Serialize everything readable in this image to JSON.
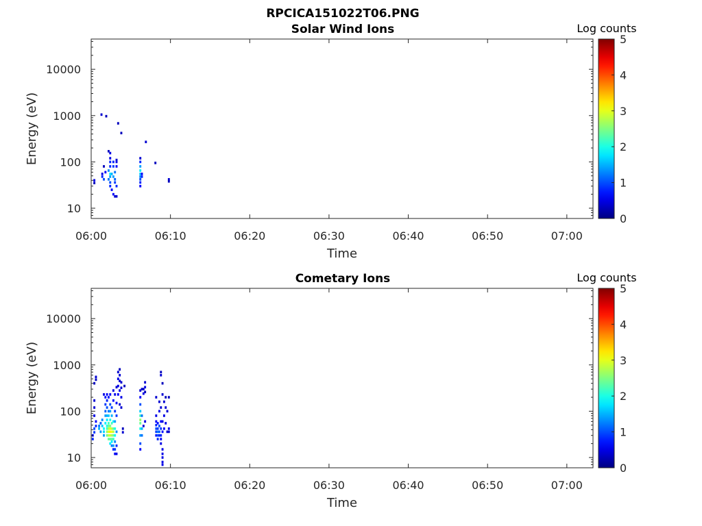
{
  "figure": {
    "title": "RPCICA151022T06.PNG"
  },
  "chart_data": [
    {
      "type": "heatmap",
      "title": "Solar Wind Ions",
      "xlabel": "Time",
      "ylabel": "Energy (eV)",
      "x_ticks": [
        "06:00",
        "06:10",
        "06:20",
        "06:30",
        "06:40",
        "06:50",
        "07:00"
      ],
      "x_tick_minutes": [
        0,
        10,
        20,
        30,
        40,
        50,
        60
      ],
      "xlim_minutes": [
        0,
        63.3
      ],
      "y_scale": "log",
      "y_ticks": [
        "10",
        "100",
        "1000",
        "10000"
      ],
      "y_tick_values": [
        10,
        100,
        1000,
        10000
      ],
      "ylim": [
        6,
        45000
      ],
      "colorbar": {
        "label": "Log counts",
        "range": [
          0,
          5
        ],
        "ticks": [
          "0",
          "1",
          "2",
          "3",
          "4",
          "5"
        ],
        "colormap": "jet"
      },
      "cells": [
        [
          0.4,
          35,
          0.3
        ],
        [
          0.4,
          40,
          0.5
        ],
        [
          1.3,
          1050,
          0.4
        ],
        [
          1.9,
          970,
          0.3
        ],
        [
          3.4,
          680,
          0.3
        ],
        [
          3.8,
          420,
          0.3
        ],
        [
          1.4,
          55,
          0.5
        ],
        [
          1.4,
          48,
          0.8
        ],
        [
          1.6,
          42,
          1.0
        ],
        [
          1.8,
          60,
          0.6
        ],
        [
          1.6,
          80,
          0.3
        ],
        [
          2.2,
          170,
          0.3
        ],
        [
          2.4,
          155,
          0.5
        ],
        [
          2.4,
          120,
          0.5
        ],
        [
          2.4,
          100,
          0.8
        ],
        [
          2.4,
          80,
          0.8
        ],
        [
          2.2,
          65,
          1.3
        ],
        [
          2.4,
          55,
          1.8
        ],
        [
          2.4,
          48,
          1.4
        ],
        [
          2.2,
          42,
          1.2
        ],
        [
          2.4,
          36,
          1.0
        ],
        [
          2.4,
          30,
          0.8
        ],
        [
          2.6,
          25,
          0.6
        ],
        [
          2.8,
          20,
          0.6
        ],
        [
          2.6,
          55,
          1.5
        ],
        [
          2.8,
          48,
          1.4
        ],
        [
          3.0,
          60,
          1.2
        ],
        [
          3.0,
          42,
          1.1
        ],
        [
          3.0,
          36,
          0.9
        ],
        [
          3.2,
          30,
          0.8
        ],
        [
          3.2,
          80,
          0.6
        ],
        [
          3.2,
          100,
          0.5
        ],
        [
          3.2,
          110,
          0.4
        ],
        [
          2.8,
          100,
          0.8
        ],
        [
          2.8,
          80,
          0.9
        ],
        [
          3.0,
          18,
          0.4
        ],
        [
          3.2,
          18,
          0.4
        ],
        [
          6.2,
          120,
          0.4
        ],
        [
          6.2,
          100,
          0.8
        ],
        [
          6.2,
          80,
          1.4
        ],
        [
          6.2,
          65,
          1.8
        ],
        [
          6.2,
          55,
          1.6
        ],
        [
          6.2,
          48,
          1.3
        ],
        [
          6.2,
          42,
          1.0
        ],
        [
          6.2,
          36,
          0.8
        ],
        [
          6.2,
          30,
          0.6
        ],
        [
          6.4,
          48,
          0.8
        ],
        [
          6.4,
          55,
          0.6
        ],
        [
          6.9,
          270,
          0.4
        ],
        [
          8.1,
          95,
          0.3
        ],
        [
          9.8,
          42,
          0.4
        ],
        [
          9.8,
          38,
          0.3
        ]
      ]
    },
    {
      "type": "heatmap",
      "title": "Cometary Ions",
      "xlabel": "Time",
      "ylabel": "Energy (eV)",
      "x_ticks": [
        "06:00",
        "06:10",
        "06:20",
        "06:30",
        "06:40",
        "06:50",
        "07:00"
      ],
      "x_tick_minutes": [
        0,
        10,
        20,
        30,
        40,
        50,
        60
      ],
      "xlim_minutes": [
        0,
        63.3
      ],
      "y_scale": "log",
      "y_ticks": [
        "10",
        "100",
        "1000",
        "10000"
      ],
      "y_tick_values": [
        10,
        100,
        1000,
        10000
      ],
      "ylim": [
        6,
        45000
      ],
      "colorbar": {
        "label": "Log counts",
        "range": [
          0,
          5
        ],
        "ticks": [
          "0",
          "1",
          "2",
          "3",
          "4",
          "5"
        ],
        "colormap": "jet"
      },
      "cells": [
        [
          0.2,
          30,
          0.6
        ],
        [
          0.2,
          25,
          0.8
        ],
        [
          0.4,
          35,
          0.9
        ],
        [
          0.4,
          42,
          1.0
        ],
        [
          0.6,
          48,
          0.8
        ],
        [
          0.6,
          60,
          0.6
        ],
        [
          0.4,
          80,
          0.5
        ],
        [
          0.4,
          120,
          0.4
        ],
        [
          0.4,
          170,
          0.4
        ],
        [
          0.6,
          550,
          0.4
        ],
        [
          0.6,
          480,
          0.3
        ],
        [
          0.4,
          400,
          0.3
        ],
        [
          1.0,
          48,
          1.2
        ],
        [
          1.0,
          42,
          1.5
        ],
        [
          1.2,
          36,
          1.4
        ],
        [
          1.2,
          55,
          1.1
        ],
        [
          1.4,
          65,
          1.3
        ],
        [
          1.4,
          48,
          1.6
        ],
        [
          1.6,
          42,
          1.9
        ],
        [
          1.6,
          36,
          1.7
        ],
        [
          1.6,
          30,
          1.4
        ],
        [
          1.8,
          55,
          1.8
        ],
        [
          1.8,
          80,
          1.4
        ],
        [
          1.8,
          100,
          1.1
        ],
        [
          1.8,
          140,
          0.9
        ],
        [
          1.8,
          200,
          0.7
        ],
        [
          1.6,
          230,
          0.5
        ],
        [
          2.0,
          30,
          2.4
        ],
        [
          2.0,
          36,
          2.6
        ],
        [
          2.0,
          42,
          2.2
        ],
        [
          2.0,
          48,
          2.0
        ],
        [
          2.0,
          65,
          1.8
        ],
        [
          2.0,
          80,
          1.5
        ],
        [
          2.0,
          120,
          1.0
        ],
        [
          2.0,
          170,
          0.8
        ],
        [
          2.0,
          230,
          0.6
        ],
        [
          2.2,
          25,
          2.4
        ],
        [
          2.2,
          30,
          2.8
        ],
        [
          2.2,
          36,
          3.0
        ],
        [
          2.2,
          42,
          2.7
        ],
        [
          2.2,
          48,
          2.4
        ],
        [
          2.2,
          55,
          2.2
        ],
        [
          2.2,
          80,
          1.6
        ],
        [
          2.2,
          100,
          1.2
        ],
        [
          2.2,
          200,
          0.7
        ],
        [
          2.4,
          20,
          1.8
        ],
        [
          2.4,
          25,
          2.3
        ],
        [
          2.4,
          30,
          2.9
        ],
        [
          2.4,
          36,
          3.2
        ],
        [
          2.4,
          42,
          3.0
        ],
        [
          2.4,
          48,
          2.5
        ],
        [
          2.4,
          65,
          2.0
        ],
        [
          2.4,
          100,
          1.4
        ],
        [
          2.4,
          140,
          1.0
        ],
        [
          2.4,
          230,
          0.6
        ],
        [
          2.6,
          18,
          1.2
        ],
        [
          2.6,
          22,
          1.8
        ],
        [
          2.6,
          25,
          2.4
        ],
        [
          2.6,
          30,
          2.7
        ],
        [
          2.6,
          36,
          3.1
        ],
        [
          2.6,
          42,
          2.8
        ],
        [
          2.6,
          55,
          2.2
        ],
        [
          2.6,
          80,
          1.5
        ],
        [
          2.6,
          120,
          0.9
        ],
        [
          2.8,
          15,
          0.8
        ],
        [
          2.8,
          18,
          1.4
        ],
        [
          2.8,
          25,
          2.2
        ],
        [
          2.8,
          30,
          2.5
        ],
        [
          2.8,
          36,
          2.8
        ],
        [
          2.8,
          42,
          2.4
        ],
        [
          2.8,
          60,
          1.8
        ],
        [
          2.8,
          170,
          0.7
        ],
        [
          2.8,
          280,
          0.5
        ],
        [
          3.0,
          12,
          0.6
        ],
        [
          3.0,
          15,
          0.9
        ],
        [
          3.0,
          22,
          1.3
        ],
        [
          3.0,
          30,
          1.9
        ],
        [
          3.0,
          42,
          2.0
        ],
        [
          3.0,
          60,
          1.4
        ],
        [
          3.0,
          100,
          0.9
        ],
        [
          3.0,
          230,
          0.5
        ],
        [
          3.2,
          12,
          0.5
        ],
        [
          3.2,
          18,
          0.8
        ],
        [
          3.2,
          36,
          1.3
        ],
        [
          3.2,
          80,
          0.9
        ],
        [
          3.2,
          150,
          0.6
        ],
        [
          3.2,
          330,
          0.4
        ],
        [
          3.4,
          700,
          0.4
        ],
        [
          3.4,
          500,
          0.5
        ],
        [
          3.4,
          350,
          0.5
        ],
        [
          3.4,
          230,
          0.6
        ],
        [
          3.6,
          800,
          0.3
        ],
        [
          3.6,
          600,
          0.4
        ],
        [
          3.6,
          450,
          0.4
        ],
        [
          3.6,
          280,
          0.5
        ],
        [
          3.8,
          420,
          0.4
        ],
        [
          3.8,
          320,
          0.4
        ],
        [
          3.8,
          200,
          0.5
        ],
        [
          3.8,
          120,
          0.4
        ],
        [
          3.6,
          140,
          0.4
        ],
        [
          4.0,
          35,
          0.4
        ],
        [
          4.0,
          42,
          0.3
        ],
        [
          4.2,
          350,
          0.3
        ],
        [
          6.2,
          15,
          0.6
        ],
        [
          6.2,
          20,
          1.0
        ],
        [
          6.2,
          30,
          1.4
        ],
        [
          6.2,
          42,
          2.0
        ],
        [
          6.2,
          55,
          2.4
        ],
        [
          6.2,
          65,
          2.6
        ],
        [
          6.2,
          80,
          2.2
        ],
        [
          6.2,
          100,
          1.6
        ],
        [
          6.2,
          140,
          1.0
        ],
        [
          6.2,
          200,
          0.6
        ],
        [
          6.2,
          280,
          0.4
        ],
        [
          6.4,
          30,
          1.2
        ],
        [
          6.4,
          42,
          1.5
        ],
        [
          6.4,
          80,
          1.2
        ],
        [
          6.4,
          300,
          0.4
        ],
        [
          6.6,
          240,
          0.5
        ],
        [
          6.6,
          300,
          0.3
        ],
        [
          6.8,
          60,
          0.5
        ],
        [
          6.8,
          330,
          0.5
        ],
        [
          6.8,
          420,
          0.4
        ],
        [
          6.8,
          260,
          0.3
        ],
        [
          6.6,
          48,
          0.4
        ],
        [
          8.2,
          50,
          0.8
        ],
        [
          8.2,
          42,
          1.0
        ],
        [
          8.2,
          36,
          0.9
        ],
        [
          8.2,
          30,
          0.7
        ],
        [
          8.2,
          60,
          0.6
        ],
        [
          8.2,
          80,
          0.5
        ],
        [
          8.2,
          200,
          0.4
        ],
        [
          8.4,
          42,
          0.9
        ],
        [
          8.4,
          36,
          1.2
        ],
        [
          8.4,
          30,
          1.0
        ],
        [
          8.4,
          25,
          0.8
        ],
        [
          8.4,
          55,
          0.7
        ],
        [
          8.6,
          48,
          1.0
        ],
        [
          8.6,
          36,
          1.1
        ],
        [
          8.6,
          30,
          0.8
        ],
        [
          8.6,
          100,
          0.5
        ],
        [
          8.6,
          160,
          0.4
        ],
        [
          8.8,
          42,
          0.9
        ],
        [
          8.8,
          30,
          0.8
        ],
        [
          8.8,
          25,
          0.6
        ],
        [
          8.8,
          20,
          0.5
        ],
        [
          8.8,
          60,
          0.6
        ],
        [
          8.8,
          120,
          0.4
        ],
        [
          8.8,
          700,
          0.3
        ],
        [
          8.8,
          600,
          0.4
        ],
        [
          9.0,
          15,
          0.5
        ],
        [
          9.0,
          12,
          0.5
        ],
        [
          9.0,
          10,
          0.5
        ],
        [
          9.0,
          8,
          0.5
        ],
        [
          9.0,
          7,
          0.5
        ],
        [
          9.0,
          36,
          0.7
        ],
        [
          9.0,
          60,
          0.5
        ],
        [
          9.0,
          230,
          0.4
        ],
        [
          9.0,
          400,
          0.3
        ],
        [
          9.2,
          42,
          0.6
        ],
        [
          9.2,
          80,
          0.5
        ],
        [
          9.2,
          160,
          0.4
        ],
        [
          9.4,
          55,
          0.5
        ],
        [
          9.4,
          120,
          0.4
        ],
        [
          9.6,
          100,
          0.4
        ],
        [
          9.6,
          36,
          0.4
        ],
        [
          9.8,
          42,
          0.5
        ],
        [
          9.8,
          36,
          0.4
        ],
        [
          9.8,
          200,
          0.3
        ],
        [
          9.4,
          200,
          0.3
        ]
      ]
    }
  ]
}
